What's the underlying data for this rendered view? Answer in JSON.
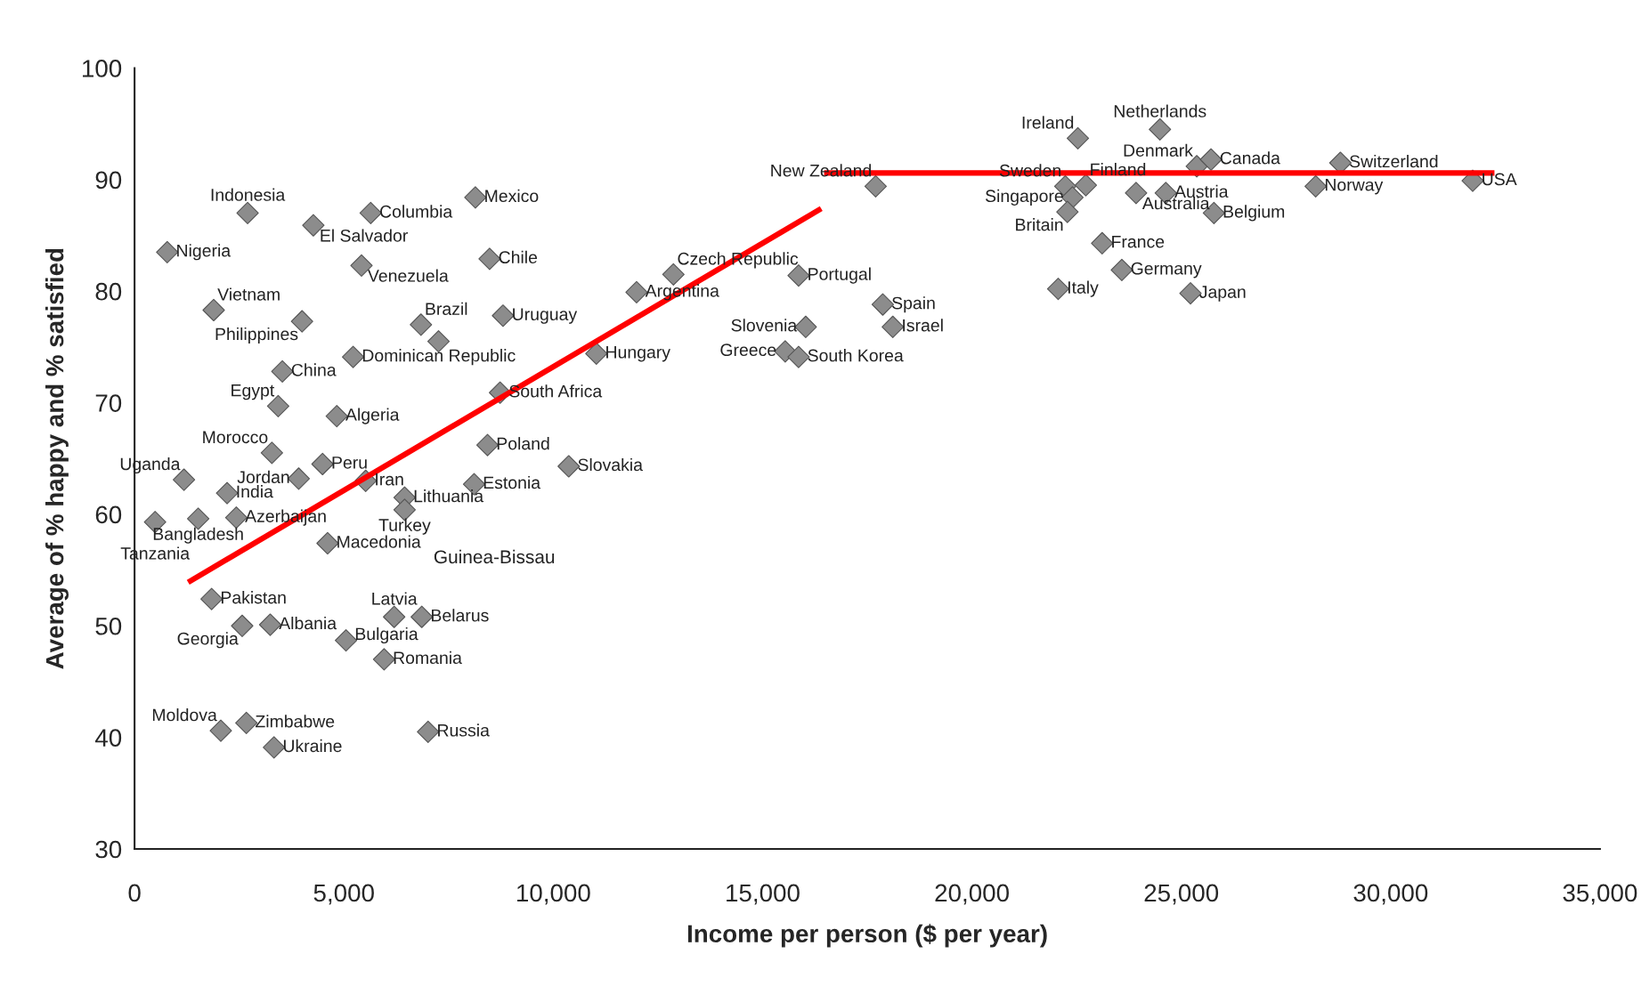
{
  "chart_data": {
    "type": "scatter",
    "xlabel": "Income per person ($ per year)",
    "ylabel": "Average of % happy and % satisfied",
    "xlim": [
      0,
      35000
    ],
    "ylim": [
      30,
      100
    ],
    "xticks": [
      0,
      {
        "value": 5000,
        "label": "5,000"
      },
      {
        "value": 10000,
        "label": "10,000"
      },
      {
        "value": 15000,
        "label": "15,000"
      },
      {
        "value": 20000,
        "label": "20,000"
      },
      {
        "value": 25000,
        "label": "25,000"
      },
      {
        "value": 30000,
        "label": "30,000"
      },
      {
        "value": 35000,
        "label": "35,000"
      }
    ],
    "yticks": [
      30,
      40,
      50,
      60,
      70,
      80,
      90,
      100
    ],
    "grid": false,
    "legend": false,
    "series": [
      {
        "marker": "diamond",
        "color": "#8c8c8c",
        "x": [
          2700,
          4270,
          5640,
          8140,
          780,
          5420,
          8480,
          1890,
          4000,
          6840,
          7260,
          8800,
          11990,
          12870,
          15860,
          16030,
          15540,
          15860,
          11030,
          5220,
          3530,
          3430,
          4830,
          8730,
          17870,
          18110,
          17700,
          3280,
          1180,
          3920,
          4490,
          2210,
          5520,
          8430,
          10370,
          8110,
          6450,
          6450,
          2430,
          1520,
          490,
          4610,
          1840,
          2570,
          3240,
          6200,
          6860,
          5050,
          5960,
          2060,
          2670,
          3330,
          7010,
          22530,
          24490,
          25370,
          25710,
          28800,
          22230,
          22720,
          22400,
          22280,
          23920,
          24630,
          28210,
          31960,
          25780,
          23110,
          23580,
          22060,
          25220
        ],
        "values": [
          87.0,
          85.9,
          87.0,
          88.4,
          83.5,
          82.3,
          82.9,
          78.3,
          77.3,
          77.0,
          75.5,
          77.8,
          79.9,
          81.5,
          81.4,
          76.8,
          74.6,
          74.1,
          74.4,
          74.1,
          72.8,
          69.7,
          68.8,
          70.9,
          78.8,
          76.8,
          89.4,
          65.5,
          63.1,
          63.2,
          64.5,
          61.9,
          63.0,
          66.2,
          64.3,
          62.7,
          61.5,
          60.4,
          59.7,
          59.6,
          59.3,
          57.4,
          52.4,
          50.0,
          50.1,
          50.8,
          50.8,
          48.7,
          47.0,
          40.6,
          41.3,
          39.1,
          40.5,
          93.7,
          94.5,
          91.2,
          91.8,
          91.5,
          89.4,
          89.5,
          88.4,
          87.1,
          88.8,
          88.8,
          89.4,
          89.9,
          87.0,
          84.3,
          81.9,
          80.2,
          79.8
        ]
      },
      {
        "type": "line",
        "color": "#ff0000",
        "x": [
          1280,
          16400
        ],
        "values": [
          53.9,
          87.4
        ]
      },
      {
        "type": "line",
        "color": "#ff0000",
        "x": [
          16470,
          32480
        ],
        "values": [
          90.6,
          90.6
        ]
      }
    ],
    "annotations": [
      {
        "text": "Indonesia",
        "x": 2700,
        "y": 87.0
      },
      {
        "text": "El Salvador",
        "x": 4270,
        "y": 85.9
      },
      {
        "text": "Columbia",
        "x": 5640,
        "y": 87.0
      },
      {
        "text": "Mexico",
        "x": 8140,
        "y": 88.4
      },
      {
        "text": "Nigeria",
        "x": 780,
        "y": 83.5
      },
      {
        "text": "Venezuela",
        "x": 5420,
        "y": 82.3
      },
      {
        "text": "Chile",
        "x": 8480,
        "y": 82.9
      },
      {
        "text": "Vietnam",
        "x": 1890,
        "y": 78.3
      },
      {
        "text": "Philippines",
        "x": 4000,
        "y": 77.3
      },
      {
        "text": "Brazil",
        "x": 6840,
        "y": 77.0
      },
      {
        "text": "Uruguay",
        "x": 8800,
        "y": 77.8
      },
      {
        "text": "Argentina",
        "x": 11990,
        "y": 79.9
      },
      {
        "text": "Czech Republic",
        "x": 12870,
        "y": 81.5
      },
      {
        "text": "Portugal",
        "x": 15860,
        "y": 81.4
      },
      {
        "text": "Slovenia",
        "x": 16030,
        "y": 76.8
      },
      {
        "text": "Greece",
        "x": 15540,
        "y": 74.6
      },
      {
        "text": "South Korea",
        "x": 15860,
        "y": 74.1
      },
      {
        "text": "Hungary",
        "x": 11030,
        "y": 74.4
      },
      {
        "text": "Dominican Republic",
        "x": 5220,
        "y": 74.1
      },
      {
        "text": "China",
        "x": 3530,
        "y": 72.8
      },
      {
        "text": "Egypt",
        "x": 3430,
        "y": 69.7
      },
      {
        "text": "Algeria",
        "x": 4830,
        "y": 68.8
      },
      {
        "text": "South Africa",
        "x": 8730,
        "y": 70.9
      },
      {
        "text": "Spain",
        "x": 17870,
        "y": 78.8
      },
      {
        "text": "Israel",
        "x": 18110,
        "y": 76.8
      },
      {
        "text": "New Zealand",
        "x": 17700,
        "y": 89.4
      },
      {
        "text": "Morocco",
        "x": 3280,
        "y": 65.5
      },
      {
        "text": "Uganda",
        "x": 1180,
        "y": 63.1
      },
      {
        "text": "Jordan",
        "x": 3920,
        "y": 63.2
      },
      {
        "text": "Peru",
        "x": 4490,
        "y": 64.5
      },
      {
        "text": "India",
        "x": 2210,
        "y": 61.9
      },
      {
        "text": "Iran",
        "x": 5520,
        "y": 63.0
      },
      {
        "text": "Poland",
        "x": 8430,
        "y": 66.2
      },
      {
        "text": "Slovakia",
        "x": 10370,
        "y": 64.3
      },
      {
        "text": "Estonia",
        "x": 8110,
        "y": 62.7
      },
      {
        "text": "Lithuania",
        "x": 6450,
        "y": 61.5
      },
      {
        "text": "Turkey",
        "x": 6450,
        "y": 60.4
      },
      {
        "text": "Azerbaijan",
        "x": 2430,
        "y": 59.7
      },
      {
        "text": "Bangladesh",
        "x": 1520,
        "y": 59.6
      },
      {
        "text": "Tanzania",
        "x": 490,
        "y": 59.3
      },
      {
        "text": "Macedonia",
        "x": 4610,
        "y": 57.4
      },
      {
        "text": "Pakistan",
        "x": 1840,
        "y": 52.4
      },
      {
        "text": "Georgia",
        "x": 2570,
        "y": 50.0
      },
      {
        "text": "Albania",
        "x": 3240,
        "y": 50.1
      },
      {
        "text": "Latvia",
        "x": 6200,
        "y": 50.8
      },
      {
        "text": "Belarus",
        "x": 6860,
        "y": 50.8
      },
      {
        "text": "Bulgaria",
        "x": 5050,
        "y": 48.7
      },
      {
        "text": "Romania",
        "x": 5960,
        "y": 47.0
      },
      {
        "text": "Moldova",
        "x": 2060,
        "y": 40.6
      },
      {
        "text": "Zimbabwe",
        "x": 2670,
        "y": 41.3
      },
      {
        "text": "Ukraine",
        "x": 3330,
        "y": 39.1
      },
      {
        "text": "Russia",
        "x": 7010,
        "y": 40.5
      },
      {
        "text": "Ireland",
        "x": 22530,
        "y": 93.7
      },
      {
        "text": "Netherlands",
        "x": 24490,
        "y": 94.5
      },
      {
        "text": "Denmark",
        "x": 25370,
        "y": 91.2
      },
      {
        "text": "Canada",
        "x": 25710,
        "y": 91.8
      },
      {
        "text": "Switzerland",
        "x": 28800,
        "y": 91.5
      },
      {
        "text": "Sweden",
        "x": 22230,
        "y": 89.4
      },
      {
        "text": "Finland",
        "x": 22720,
        "y": 89.5
      },
      {
        "text": "Singapore",
        "x": 22400,
        "y": 88.4
      },
      {
        "text": "Britain",
        "x": 22280,
        "y": 87.1
      },
      {
        "text": "Australia",
        "x": 23920,
        "y": 88.8
      },
      {
        "text": "Austria",
        "x": 24630,
        "y": 88.8
      },
      {
        "text": "Norway",
        "x": 28210,
        "y": 89.4
      },
      {
        "text": "USA",
        "x": 31960,
        "y": 89.9
      },
      {
        "text": "Belgium",
        "x": 25780,
        "y": 87.0
      },
      {
        "text": "France",
        "x": 23110,
        "y": 84.3
      },
      {
        "text": "Germany",
        "x": 23580,
        "y": 81.9
      },
      {
        "text": "Italy",
        "x": 22060,
        "y": 80.2
      },
      {
        "text": "Japan",
        "x": 25220,
        "y": 79.8
      },
      "Guinea-Bissau"
    ]
  }
}
